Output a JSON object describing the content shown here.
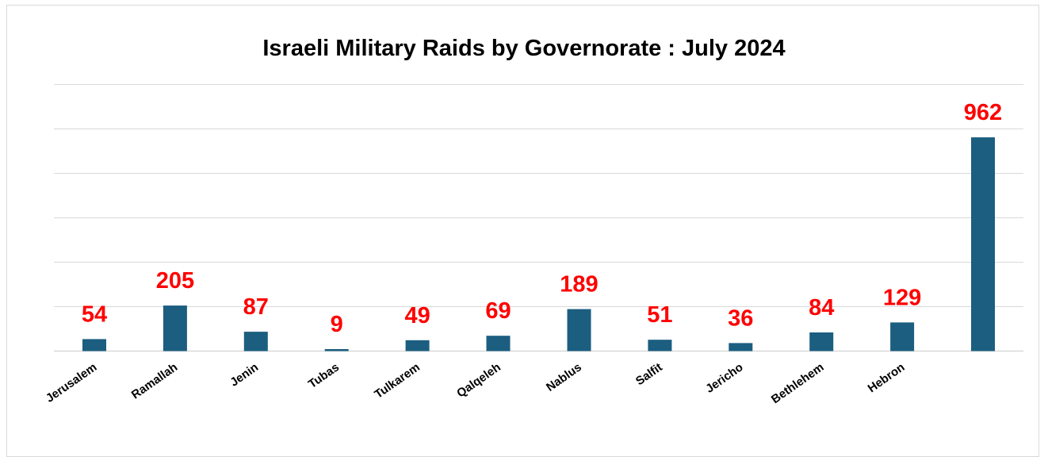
{
  "chart_data": {
    "type": "bar",
    "title": "Israeli Military Raids by Governorate : July 2024",
    "xlabel": "",
    "ylabel": "",
    "categories": [
      "Jerusalem",
      "Ramallah",
      "Jenin",
      "Tubas",
      "Tulkarem",
      "Qalqeleh",
      "Nablus",
      "Salfit",
      "Jericho",
      "Bethlehem",
      "Hebron",
      ""
    ],
    "values": [
      54,
      205,
      87,
      9,
      49,
      69,
      189,
      51,
      36,
      84,
      129,
      962
    ],
    "ylim": [
      0,
      1200
    ],
    "grid": true,
    "legend": "none",
    "colors": {
      "bar": "#1b5e80",
      "data_label": "#ff0000",
      "grid": "#d9d9d9",
      "axis": "#d9d9d9"
    }
  }
}
